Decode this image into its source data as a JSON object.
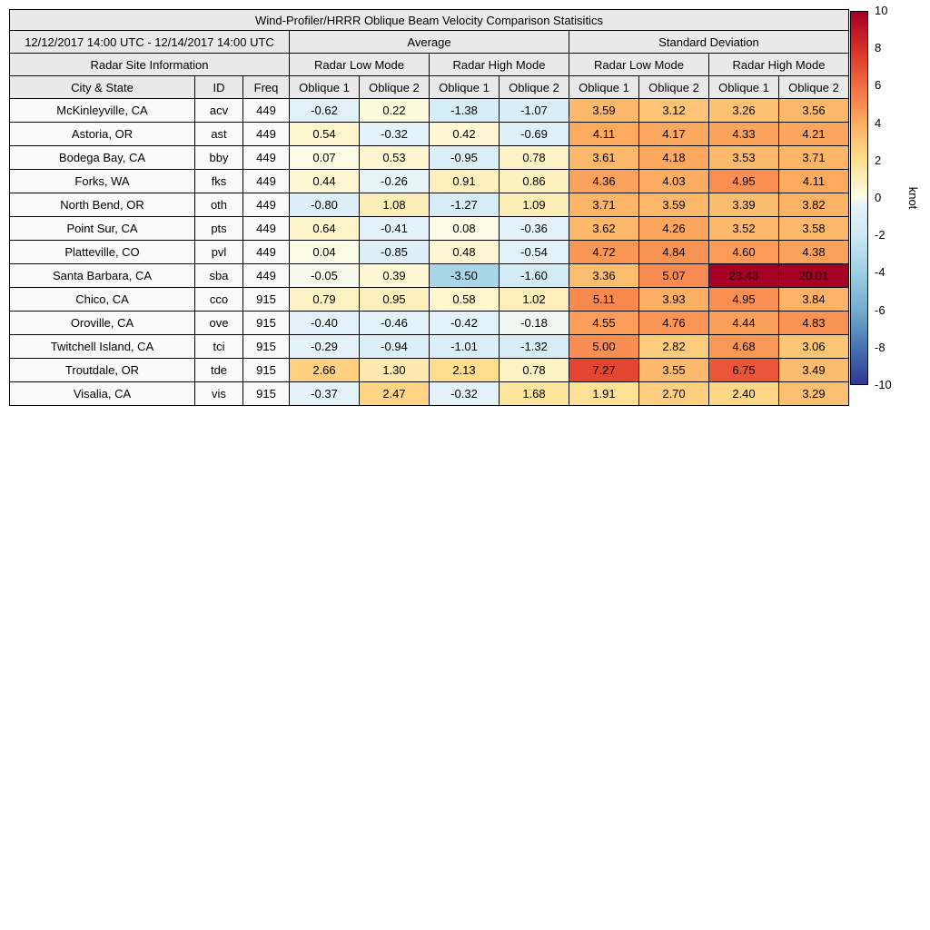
{
  "chart_data": {
    "type": "heatmap",
    "title": "Wind-Profiler/HRRR Oblique Beam Velocity Comparison Statisitics",
    "header": {
      "date_range": "12/12/2017 14:00 UTC - 12/14/2017 14:00 UTC",
      "group_average": "Average",
      "group_std": "Standard Deviation",
      "site_info": "Radar Site Information",
      "modes": [
        "Radar Low Mode",
        "Radar High Mode",
        "Radar Low Mode",
        "Radar High Mode"
      ],
      "columns": [
        "City & State",
        "ID",
        "Freq",
        "Oblique 1",
        "Oblique 2",
        "Oblique 1",
        "Oblique 2",
        "Oblique 1",
        "Oblique 2",
        "Oblique 1",
        "Oblique 2"
      ]
    },
    "rows": [
      {
        "city": "McKinleyville, CA",
        "id": "acv",
        "freq": "449",
        "values": [
          -0.62,
          0.22,
          -1.38,
          -1.07,
          3.59,
          3.12,
          3.26,
          3.56
        ]
      },
      {
        "city": "Astoria, OR",
        "id": "ast",
        "freq": "449",
        "values": [
          0.54,
          -0.32,
          0.42,
          -0.69,
          4.11,
          4.17,
          4.33,
          4.21
        ]
      },
      {
        "city": "Bodega Bay, CA",
        "id": "bby",
        "freq": "449",
        "values": [
          0.07,
          0.53,
          -0.95,
          0.78,
          3.61,
          4.18,
          3.53,
          3.71
        ]
      },
      {
        "city": "Forks, WA",
        "id": "fks",
        "freq": "449",
        "values": [
          0.44,
          -0.26,
          0.91,
          0.86,
          4.36,
          4.03,
          4.95,
          4.11
        ]
      },
      {
        "city": "North Bend, OR",
        "id": "oth",
        "freq": "449",
        "values": [
          -0.8,
          1.08,
          -1.27,
          1.09,
          3.71,
          3.59,
          3.39,
          3.82
        ]
      },
      {
        "city": "Point Sur, CA",
        "id": "pts",
        "freq": "449",
        "values": [
          0.64,
          -0.41,
          0.08,
          -0.36,
          3.62,
          4.26,
          3.52,
          3.58
        ]
      },
      {
        "city": "Platteville, CO",
        "id": "pvl",
        "freq": "449",
        "values": [
          0.04,
          -0.85,
          0.48,
          -0.54,
          4.72,
          4.84,
          4.6,
          4.38
        ]
      },
      {
        "city": "Santa Barbara, CA",
        "id": "sba",
        "freq": "449",
        "values": [
          -0.05,
          0.39,
          -3.5,
          -1.6,
          3.36,
          5.07,
          23.43,
          20.01
        ]
      },
      {
        "city": "Chico, CA",
        "id": "cco",
        "freq": "915",
        "values": [
          0.79,
          0.95,
          0.58,
          1.02,
          5.11,
          3.93,
          4.95,
          3.84
        ]
      },
      {
        "city": "Oroville, CA",
        "id": "ove",
        "freq": "915",
        "values": [
          -0.4,
          -0.46,
          -0.42,
          -0.18,
          4.55,
          4.76,
          4.44,
          4.83
        ]
      },
      {
        "city": "Twitchell Island, CA",
        "id": "tci",
        "freq": "915",
        "values": [
          -0.29,
          -0.94,
          -1.01,
          -1.32,
          5.0,
          2.82,
          4.68,
          3.06
        ]
      },
      {
        "city": "Troutdale, OR",
        "id": "tde",
        "freq": "915",
        "values": [
          2.66,
          1.3,
          2.13,
          0.78,
          7.27,
          3.55,
          6.75,
          3.49
        ]
      },
      {
        "city": "Visalia, CA",
        "id": "vis",
        "freq": "915",
        "values": [
          -0.37,
          2.47,
          -0.32,
          1.68,
          1.91,
          2.7,
          2.4,
          3.29
        ]
      }
    ],
    "colorbar": {
      "label": "knot",
      "min": -10,
      "max": 10,
      "ticks": [
        10,
        8,
        6,
        4,
        2,
        0,
        -2,
        -4,
        -6,
        -8,
        -10
      ]
    },
    "colormap": {
      "anchors": [
        [
          -10,
          "#313695"
        ],
        [
          -8,
          "#4575b4"
        ],
        [
          -6,
          "#74add1"
        ],
        [
          -4,
          "#9ccee4"
        ],
        [
          -2,
          "#cde9f4"
        ],
        [
          -0.3,
          "#e4f3f9"
        ],
        [
          0,
          "#fcfce8"
        ],
        [
          0.3,
          "#fdf9d8"
        ],
        [
          2,
          "#fee090"
        ],
        [
          4,
          "#fdae61"
        ],
        [
          6,
          "#f46d43"
        ],
        [
          8,
          "#d73027"
        ],
        [
          10,
          "#a50026"
        ]
      ]
    }
  }
}
